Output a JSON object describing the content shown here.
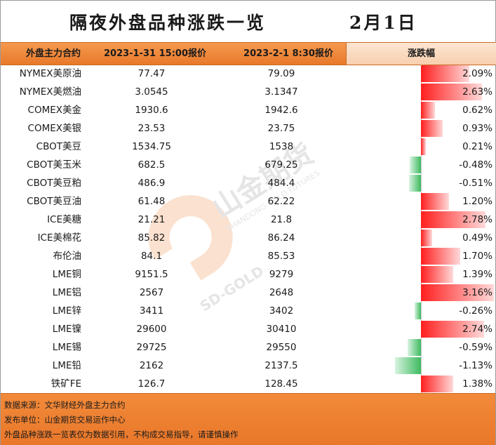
{
  "title": "隔夜外盘品种涨跌一览",
  "date": "2月1日",
  "header": {
    "col_contract": "外盘主力合约",
    "col_price1": "2023-1-31 15:00报价",
    "col_price2": "2023-2-1 8:30报价",
    "col_change": "涨跌幅"
  },
  "colors": {
    "header_orange": "#e8782a",
    "up_red": "#ff1f1f",
    "down_green": "#3dba5f"
  },
  "rows": [
    {
      "name": "NYMEX美原油",
      "price1": "77.47",
      "price2": "79.09",
      "change": "2.09%",
      "change_value": 2.09
    },
    {
      "name": "NYMEX美燃油",
      "price1": "3.0545",
      "price2": "3.1347",
      "change": "2.63%",
      "change_value": 2.63
    },
    {
      "name": "COMEX美金",
      "price1": "1930.6",
      "price2": "1942.6",
      "change": "0.62%",
      "change_value": 0.62
    },
    {
      "name": "COMEX美银",
      "price1": "23.53",
      "price2": "23.75",
      "change": "0.93%",
      "change_value": 0.93
    },
    {
      "name": "CBOT美豆",
      "price1": "1534.75",
      "price2": "1538",
      "change": "0.21%",
      "change_value": 0.21
    },
    {
      "name": "CBOT美玉米",
      "price1": "682.5",
      "price2": "679.25",
      "change": "-0.48%",
      "change_value": -0.48
    },
    {
      "name": "CBOT美豆粕",
      "price1": "486.9",
      "price2": "484.4",
      "change": "-0.51%",
      "change_value": -0.51
    },
    {
      "name": "CBOT美豆油",
      "price1": "61.48",
      "price2": "62.22",
      "change": "1.20%",
      "change_value": 1.2
    },
    {
      "name": "ICE美糖",
      "price1": "21.21",
      "price2": "21.8",
      "change": "2.78%",
      "change_value": 2.78
    },
    {
      "name": "ICE美棉花",
      "price1": "85.82",
      "price2": "86.24",
      "change": "0.49%",
      "change_value": 0.49
    },
    {
      "name": "布伦油",
      "price1": "84.1",
      "price2": "85.53",
      "change": "1.70%",
      "change_value": 1.7
    },
    {
      "name": "LME铜",
      "price1": "9151.5",
      "price2": "9279",
      "change": "1.39%",
      "change_value": 1.39
    },
    {
      "name": "LME铝",
      "price1": "2567",
      "price2": "2648",
      "change": "3.16%",
      "change_value": 3.16
    },
    {
      "name": "LME锌",
      "price1": "3411",
      "price2": "3402",
      "change": "-0.26%",
      "change_value": -0.26
    },
    {
      "name": "LME镍",
      "price1": "29600",
      "price2": "30410",
      "change": "2.74%",
      "change_value": 2.74
    },
    {
      "name": "LME锡",
      "price1": "29725",
      "price2": "29550",
      "change": "-0.59%",
      "change_value": -0.59
    },
    {
      "name": "LME铅",
      "price1": "2162",
      "price2": "2137.5",
      "change": "-1.13%",
      "change_value": -1.13
    },
    {
      "name": "铁矿FE",
      "price1": "126.7",
      "price2": "128.45",
      "change": "1.38%",
      "change_value": 1.38
    }
  ],
  "watermark": {
    "logo_text": "山金期货",
    "sub_text": "SHANDONG GOLD FUTURES",
    "brand": "SD-GOLD"
  },
  "footer": {
    "source": "数据来源：文华财经外盘主力合约",
    "publisher": "发布单位：山金期货交易运作中心",
    "disclaimer": "外盘品种涨跌一览表仅为数据引用，不构成交易指导，请谨慎操作"
  }
}
